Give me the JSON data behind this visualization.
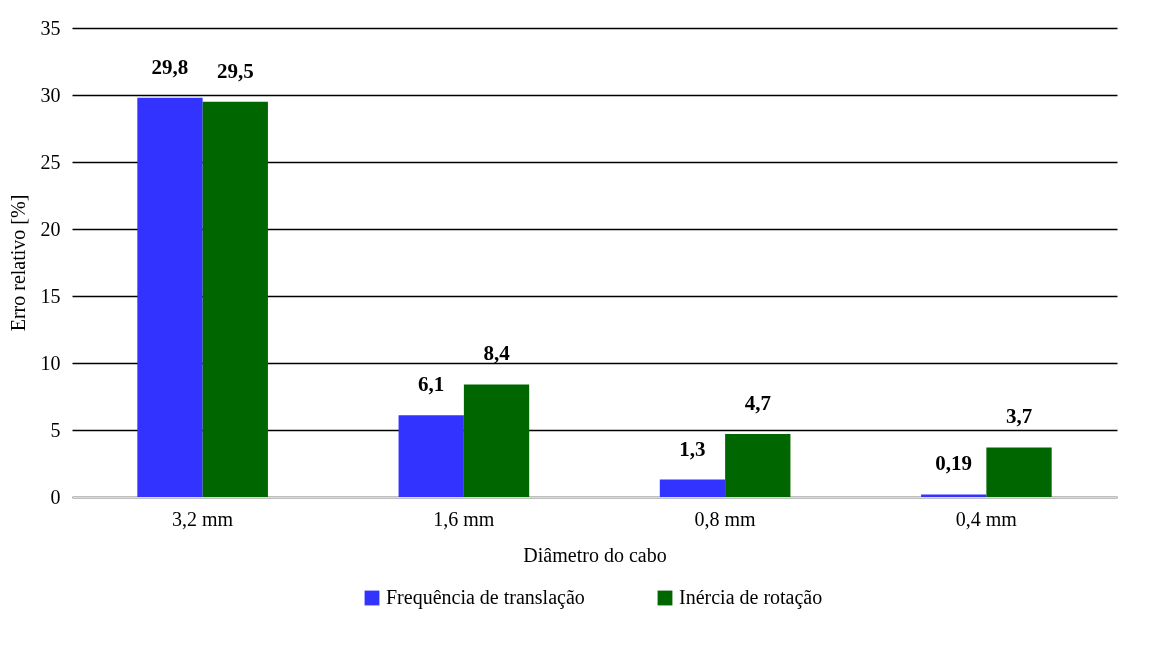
{
  "chart_data": {
    "type": "bar",
    "xlabel": "Diâmetro do cabo",
    "ylabel": "Erro relativo [%]",
    "categories": [
      "3,2 mm",
      "1,6 mm",
      "0,8 mm",
      "0,4 mm"
    ],
    "series": [
      {
        "name": "Frequência de translação",
        "color": "#3333ff",
        "values": [
          29.8,
          6.1,
          1.3,
          0.19
        ],
        "value_labels": [
          "29,8",
          "6,1",
          "1,3",
          "0,19"
        ]
      },
      {
        "name": "Inércia de rotação",
        "color": "#006600",
        "values": [
          29.5,
          8.4,
          4.7,
          3.7
        ],
        "value_labels": [
          "29,5",
          "8,4",
          "4,7",
          "3,7"
        ]
      }
    ],
    "ylim": [
      0,
      35
    ],
    "yticks": [
      0,
      5,
      10,
      15,
      20,
      25,
      30,
      35
    ],
    "grid": "y",
    "legend": "bottom"
  }
}
